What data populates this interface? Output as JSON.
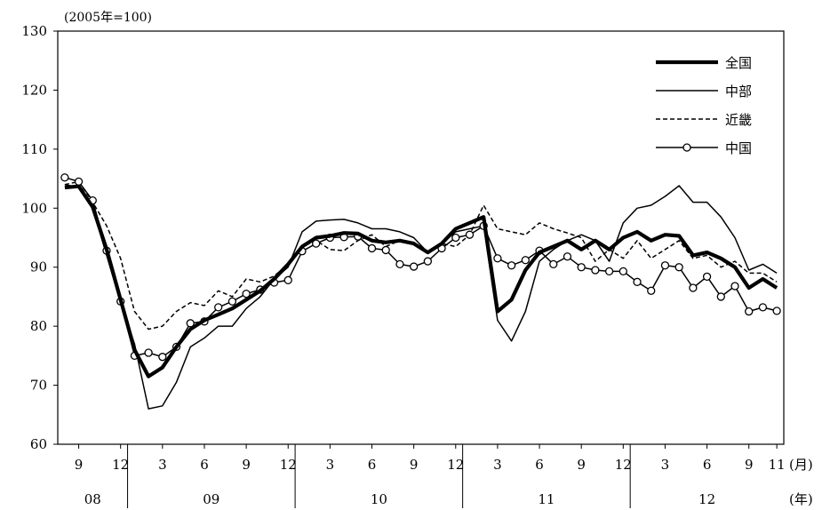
{
  "chart_data": {
    "type": "line",
    "unit_note": "(2005年=100)",
    "month_axis_label": "(月)",
    "year_axis_label": "(年)",
    "ylim": [
      60,
      130
    ],
    "yticks": [
      60,
      70,
      80,
      90,
      100,
      110,
      120,
      130
    ],
    "grid": false,
    "legend_position": "top-right",
    "x_start": "2008-08",
    "month_ticks": [
      {
        "index": 1,
        "label": "9"
      },
      {
        "index": 4,
        "label": "12"
      },
      {
        "index": 7,
        "label": "3"
      },
      {
        "index": 10,
        "label": "6"
      },
      {
        "index": 13,
        "label": "9"
      },
      {
        "index": 16,
        "label": "12"
      },
      {
        "index": 19,
        "label": "3"
      },
      {
        "index": 22,
        "label": "6"
      },
      {
        "index": 25,
        "label": "9"
      },
      {
        "index": 28,
        "label": "12"
      },
      {
        "index": 31,
        "label": "3"
      },
      {
        "index": 34,
        "label": "6"
      },
      {
        "index": 37,
        "label": "9"
      },
      {
        "index": 40,
        "label": "12"
      },
      {
        "index": 43,
        "label": "3"
      },
      {
        "index": 46,
        "label": "6"
      },
      {
        "index": 49,
        "label": "9"
      },
      {
        "index": 51,
        "label": "11"
      }
    ],
    "years": [
      {
        "label": "08",
        "from": 0,
        "to": 4
      },
      {
        "label": "09",
        "from": 5,
        "to": 16
      },
      {
        "label": "10",
        "from": 17,
        "to": 28
      },
      {
        "label": "11",
        "from": 29,
        "to": 40
      },
      {
        "label": "12",
        "from": 41,
        "to": 51
      }
    ],
    "series": [
      {
        "name": "全国",
        "style": "thick",
        "values": [
          103.5,
          103.7,
          100.2,
          93.0,
          84.5,
          76.0,
          71.5,
          73.0,
          76.5,
          79.5,
          81.0,
          82.0,
          83.0,
          84.5,
          86.0,
          88.0,
          90.5,
          93.5,
          95.0,
          95.3,
          95.8,
          95.7,
          94.5,
          94.2,
          94.5,
          94.0,
          92.5,
          94.0,
          96.5,
          97.5,
          98.5,
          82.5,
          84.5,
          89.5,
          92.5,
          93.5,
          94.5,
          93.0,
          94.5,
          93.0,
          95.0,
          96.0,
          94.5,
          95.5,
          95.3,
          92.0,
          92.5,
          91.5,
          90.0,
          86.5,
          88.0,
          86.5
        ]
      },
      {
        "name": "中部",
        "style": "thin",
        "values": [
          104.0,
          103.5,
          100.0,
          92.0,
          84.0,
          77.0,
          66.0,
          66.5,
          70.5,
          76.5,
          78.0,
          80.0,
          80.0,
          83.0,
          85.0,
          88.0,
          90.0,
          96.0,
          97.8,
          98.0,
          98.1,
          97.5,
          96.5,
          96.5,
          96.0,
          95.0,
          92.5,
          94.0,
          96.0,
          96.5,
          97.0,
          81.0,
          77.5,
          82.5,
          91.0,
          93.0,
          94.5,
          95.5,
          94.5,
          91.0,
          97.5,
          100.0,
          100.5,
          102.0,
          103.8,
          101.0,
          101.0,
          98.5,
          95.0,
          89.5,
          90.5,
          89.0
        ]
      },
      {
        "name": "近畿",
        "style": "dashed",
        "values": [
          104.0,
          104.5,
          101.0,
          97.0,
          91.5,
          82.5,
          79.5,
          80.0,
          82.5,
          84.0,
          83.5,
          86.0,
          85.0,
          88.0,
          87.5,
          88.5,
          90.5,
          93.5,
          94.5,
          93.0,
          92.8,
          94.5,
          95.5,
          93.5,
          94.5,
          93.8,
          92.5,
          94.0,
          93.5,
          95.5,
          100.5,
          96.5,
          96.0,
          95.5,
          97.5,
          96.5,
          95.8,
          95.0,
          91.0,
          93.0,
          91.5,
          94.5,
          91.5,
          93.0,
          94.5,
          91.5,
          92.0,
          90.0,
          91.0,
          89.0,
          89.0,
          87.5
        ]
      },
      {
        "name": "中国",
        "style": "marker",
        "values": [
          105.2,
          104.5,
          101.3,
          92.8,
          84.2,
          75.0,
          75.5,
          74.8,
          76.5,
          80.5,
          80.8,
          83.2,
          84.2,
          85.5,
          86.2,
          87.4,
          87.8,
          92.7,
          94.0,
          95.0,
          95.1,
          95.2,
          93.2,
          92.9,
          90.5,
          90.1,
          91.0,
          93.2,
          95.0,
          95.5,
          97.0,
          91.5,
          90.3,
          91.2,
          92.8,
          90.5,
          91.8,
          90.0,
          89.5,
          89.3,
          89.3,
          87.5,
          86.0,
          90.3,
          90.0,
          86.5,
          88.4,
          85.0,
          86.8,
          82.5,
          83.2,
          82.6
        ]
      }
    ]
  }
}
